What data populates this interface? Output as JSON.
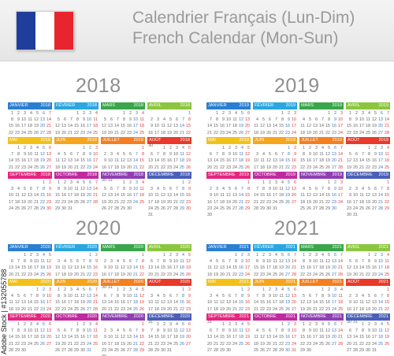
{
  "header": {
    "title_line1": "Calendrier Français (Lun-Dim)",
    "title_line2": "French Calendar (Mon-Sun)",
    "flag_colors": [
      "#1f3d9a",
      "#ffffff",
      "#e8242e"
    ]
  },
  "watermark": {
    "text": "Adobe Stock | #132055788"
  },
  "month_colors": [
    "#2a7fd1",
    "#2aa6e0",
    "#3aa54a",
    "#8cc63f",
    "#f2c21a",
    "#f7a51c",
    "#f47f20",
    "#e8392a",
    "#e6257e",
    "#c02aa0",
    "#8f3fb3",
    "#4a5fb8"
  ],
  "month_names": [
    "JANVIER",
    "FÉVRIER",
    "MARS",
    "AVRIL",
    "MAI",
    "JUIN",
    "JUILLET",
    "AOÛT",
    "SEPTEMBRE",
    "OCTOBRE",
    "NOVEMBRE",
    "DÉCEMBRE"
  ],
  "years": [
    {
      "year": "2018",
      "offsets": [
        0,
        3,
        3,
        6,
        1,
        4,
        6,
        2,
        5,
        0,
        3,
        5
      ]
    },
    {
      "year": "2019",
      "offsets": [
        1,
        4,
        4,
        0,
        2,
        5,
        0,
        3,
        6,
        1,
        4,
        6
      ]
    },
    {
      "year": "2020",
      "offsets": [
        2,
        5,
        6,
        2,
        4,
        0,
        2,
        5,
        1,
        3,
        6,
        1
      ]
    },
    {
      "year": "2021",
      "offsets": [
        4,
        0,
        0,
        3,
        5,
        1,
        3,
        6,
        2,
        4,
        0,
        2
      ]
    }
  ]
}
